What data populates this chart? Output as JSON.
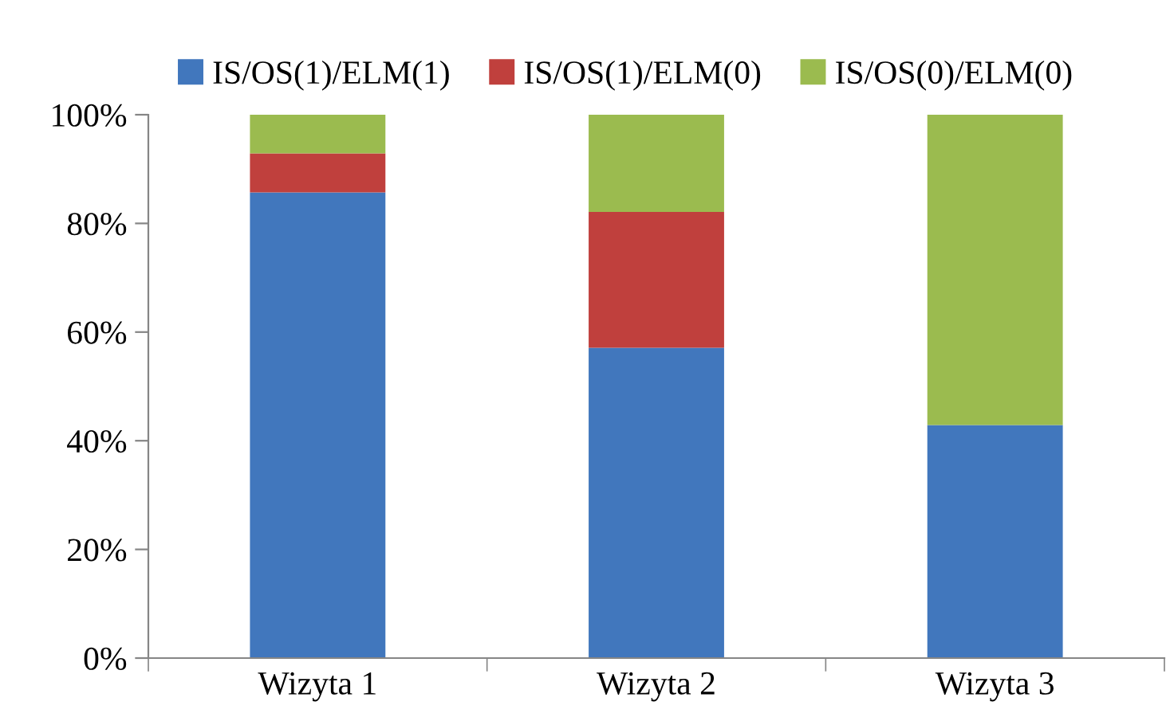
{
  "chart_data": {
    "type": "bar",
    "stacked": true,
    "categories": [
      "Wizyta 1",
      "Wizyta 2",
      "Wizyta 3"
    ],
    "series": [
      {
        "name": "IS/OS(1)/ELM(1)",
        "color": "#4177bd",
        "values": [
          85.7,
          57.1,
          42.9
        ]
      },
      {
        "name": "IS/OS(1)/ELM(0)",
        "color": "#c0403d",
        "values": [
          7.2,
          25.0,
          0
        ]
      },
      {
        "name": "IS/OS(0)/ELM(0)",
        "color": "#9bbb4f",
        "values": [
          7.1,
          17.9,
          57.1
        ]
      }
    ],
    "ylim": [
      0,
      100
    ],
    "yticks": [
      {
        "value": 0,
        "label": "0%"
      },
      {
        "value": 20,
        "label": "20%"
      },
      {
        "value": 40,
        "label": "40%"
      },
      {
        "value": 60,
        "label": "60%"
      },
      {
        "value": 80,
        "label": "80%"
      },
      {
        "value": 100,
        "label": "100%"
      }
    ],
    "grid": false,
    "legend": "top"
  }
}
